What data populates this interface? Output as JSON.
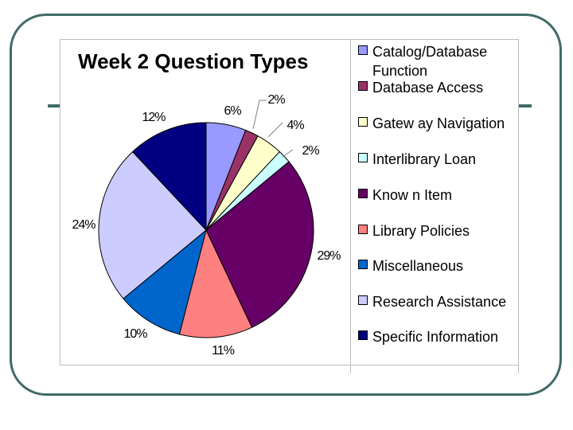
{
  "chart_data": {
    "type": "pie",
    "title": "Week 2 Question Types",
    "unit": "%",
    "legend_position": "right",
    "slices": [
      {
        "label": "Catalog/Database Function",
        "value": 6,
        "display": "6%",
        "color": "#9999ff"
      },
      {
        "label": "Database Access",
        "value": 2,
        "display": "2%",
        "color": "#993366"
      },
      {
        "label": "Gatew ay Navigation",
        "value": 4,
        "display": "4%",
        "color": "#ffffcc"
      },
      {
        "label": "Interlibrary Loan",
        "value": 2,
        "display": "2%",
        "color": "#ccffff"
      },
      {
        "label": "Know n Item",
        "value": 29,
        "display": "29%",
        "color": "#660066"
      },
      {
        "label": "Library Policies",
        "value": 11,
        "display": "11%",
        "color": "#ff8080"
      },
      {
        "label": "Miscellaneous",
        "value": 10,
        "display": "10%",
        "color": "#0066cc"
      },
      {
        "label": "Research Assistance",
        "value": 24,
        "display": "24%",
        "color": "#ccccff"
      },
      {
        "label": "Specific Information",
        "value": 12,
        "display": "12%",
        "color": "#000080"
      }
    ]
  }
}
